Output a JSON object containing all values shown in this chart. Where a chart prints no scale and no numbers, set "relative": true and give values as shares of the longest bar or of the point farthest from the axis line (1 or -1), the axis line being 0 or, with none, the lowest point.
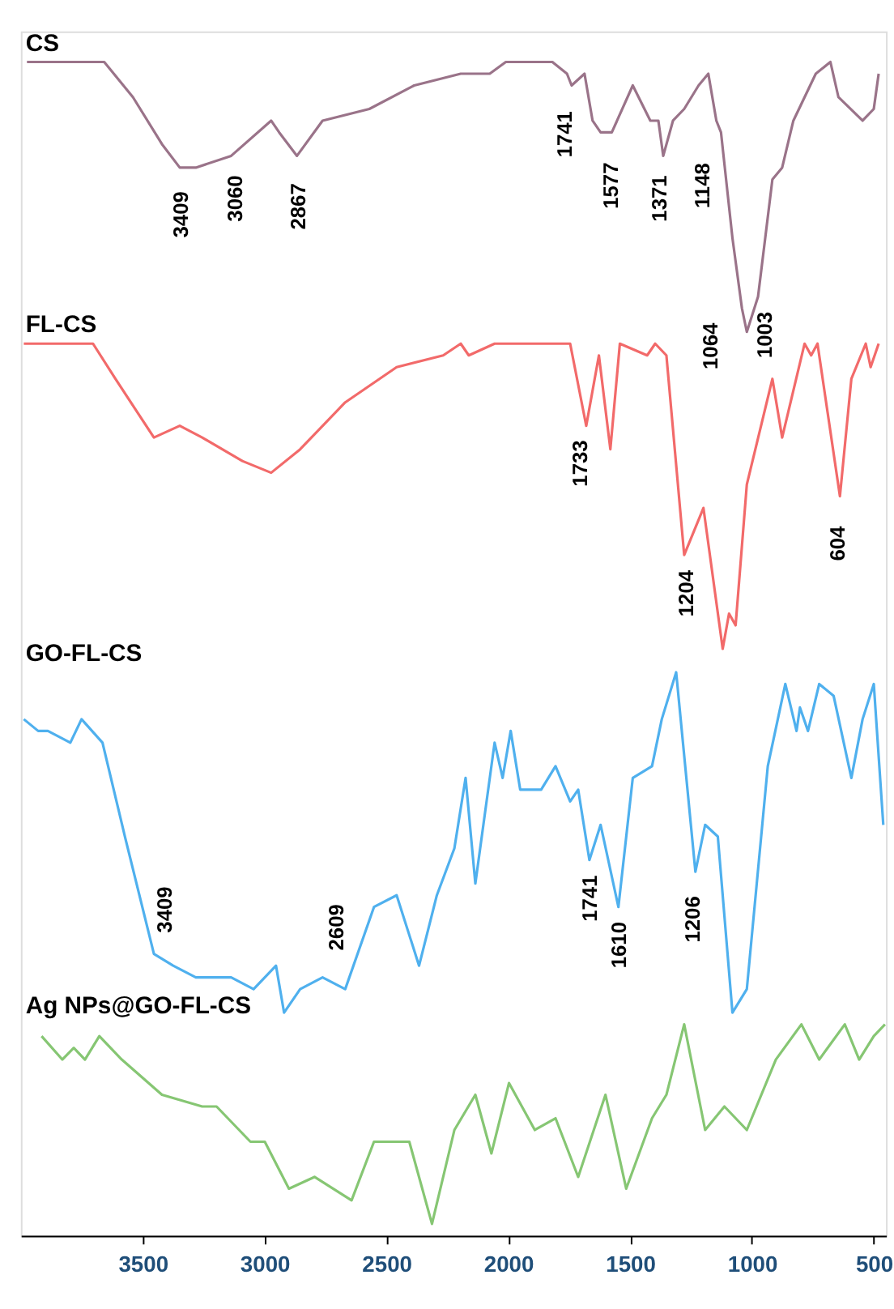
{
  "chart_data": {
    "type": "line",
    "relative": true,
    "xlim": [
      4000,
      450
    ],
    "xticks": [
      3500,
      3000,
      2500,
      2000,
      1500,
      1000,
      500
    ],
    "grid": false,
    "legend": false,
    "marker": "none",
    "line_style": "solid",
    "series": [
      {
        "name": "CS",
        "color": "#9a7389",
        "x": [
          3975,
          3658,
          3540,
          3421,
          3348,
          3282,
          3137,
          2973,
          2940,
          2867,
          2762,
          2570,
          2386,
          2195,
          2129,
          2076,
          2010,
          1819,
          1759,
          1740,
          1687,
          1654,
          1621,
          1575,
          1489,
          1417,
          1384,
          1364,
          1324,
          1278,
          1219,
          1179,
          1146,
          1127,
          1080,
          1041,
          1021,
          975,
          916,
          876,
          830,
          738,
          678,
          645,
          546,
          500,
          480
        ],
        "values": [
          1.0,
          1.0,
          0.97,
          0.93,
          0.91,
          0.91,
          0.92,
          0.95,
          0.94,
          0.92,
          0.95,
          0.96,
          0.98,
          0.99,
          0.99,
          0.99,
          1.0,
          1.0,
          0.99,
          0.98,
          0.99,
          0.95,
          0.94,
          0.94,
          0.98,
          0.95,
          0.95,
          0.92,
          0.95,
          0.96,
          0.98,
          0.99,
          0.95,
          0.94,
          0.85,
          0.79,
          0.77,
          0.8,
          0.9,
          0.91,
          0.95,
          0.99,
          1.0,
          0.97,
          0.95,
          0.96,
          0.99
        ]
      },
      {
        "name": "FL-CS",
        "color": "#f26a6a",
        "x": [
          3988,
          3704,
          3612,
          3454,
          3348,
          3256,
          3091,
          2973,
          2854,
          2669,
          2458,
          2267,
          2195,
          2162,
          2056,
          1964,
          1746,
          1680,
          1628,
          1581,
          1542,
          1430,
          1397,
          1351,
          1278,
          1199,
          1120,
          1094,
          1067,
          1021,
          916,
          876,
          830,
          784,
          757,
          731,
          639,
          592,
          533,
          513,
          480
        ],
        "values": [
          0.76,
          0.76,
          0.73,
          0.68,
          0.69,
          0.68,
          0.66,
          0.65,
          0.67,
          0.71,
          0.74,
          0.75,
          0.76,
          0.75,
          0.76,
          0.76,
          0.76,
          0.69,
          0.75,
          0.67,
          0.76,
          0.75,
          0.76,
          0.75,
          0.58,
          0.62,
          0.5,
          0.53,
          0.52,
          0.64,
          0.73,
          0.68,
          0.72,
          0.76,
          0.75,
          0.76,
          0.63,
          0.73,
          0.76,
          0.74,
          0.76
        ]
      },
      {
        "name": "GO-FL-CS",
        "color": "#4fb0ee",
        "x": [
          3988,
          3929,
          3889,
          3797,
          3751,
          3665,
          3573,
          3454,
          3375,
          3282,
          3137,
          3045,
          2953,
          2920,
          2854,
          2762,
          2669,
          2551,
          2458,
          2366,
          2293,
          2221,
          2175,
          2135,
          2056,
          2023,
          1990,
          1951,
          1865,
          1806,
          1746,
          1713,
          1667,
          1621,
          1548,
          1489,
          1410,
          1370,
          1311,
          1232,
          1192,
          1140,
          1080,
          1021,
          935,
          863,
          817,
          803,
          770,
          724,
          665,
          592,
          546,
          500,
          461
        ],
        "values": [
          0.44,
          0.43,
          0.43,
          0.42,
          0.44,
          0.42,
          0.34,
          0.24,
          0.23,
          0.22,
          0.22,
          0.21,
          0.23,
          0.19,
          0.21,
          0.22,
          0.21,
          0.28,
          0.29,
          0.23,
          0.29,
          0.33,
          0.39,
          0.3,
          0.42,
          0.39,
          0.43,
          0.38,
          0.38,
          0.4,
          0.37,
          0.38,
          0.32,
          0.35,
          0.28,
          0.39,
          0.4,
          0.44,
          0.48,
          0.31,
          0.35,
          0.34,
          0.19,
          0.21,
          0.4,
          0.47,
          0.43,
          0.45,
          0.43,
          0.47,
          0.46,
          0.39,
          0.44,
          0.47,
          0.35
        ]
      },
      {
        "name": "Ag NPs@GO-FL-CS",
        "color": "#86c673",
        "x": [
          3915,
          3830,
          3783,
          3737,
          3678,
          3586,
          3421,
          3256,
          3197,
          3058,
          2999,
          2900,
          2795,
          2643,
          2551,
          2406,
          2313,
          2221,
          2135,
          2069,
          1997,
          1891,
          1806,
          1713,
          1601,
          1516,
          1410,
          1351,
          1278,
          1192,
          1113,
          1021,
          902,
          797,
          724,
          619,
          560,
          500,
          454
        ],
        "values": [
          0.17,
          0.15,
          0.16,
          0.15,
          0.17,
          0.15,
          0.12,
          0.11,
          0.11,
          0.08,
          0.08,
          0.04,
          0.05,
          0.03,
          0.08,
          0.08,
          0.01,
          0.09,
          0.12,
          0.07,
          0.13,
          0.09,
          0.1,
          0.05,
          0.12,
          0.04,
          0.1,
          0.12,
          0.18,
          0.09,
          0.11,
          0.09,
          0.15,
          0.18,
          0.15,
          0.18,
          0.15,
          0.17,
          0.18
        ]
      }
    ],
    "annotations": [
      "3409",
      "3060",
      "2867",
      "1741",
      "1577",
      "1371",
      "1148",
      "1064",
      "1003",
      "1733",
      "1204",
      "604",
      "3409",
      "2609",
      "1741",
      "1610",
      "1206"
    ]
  }
}
